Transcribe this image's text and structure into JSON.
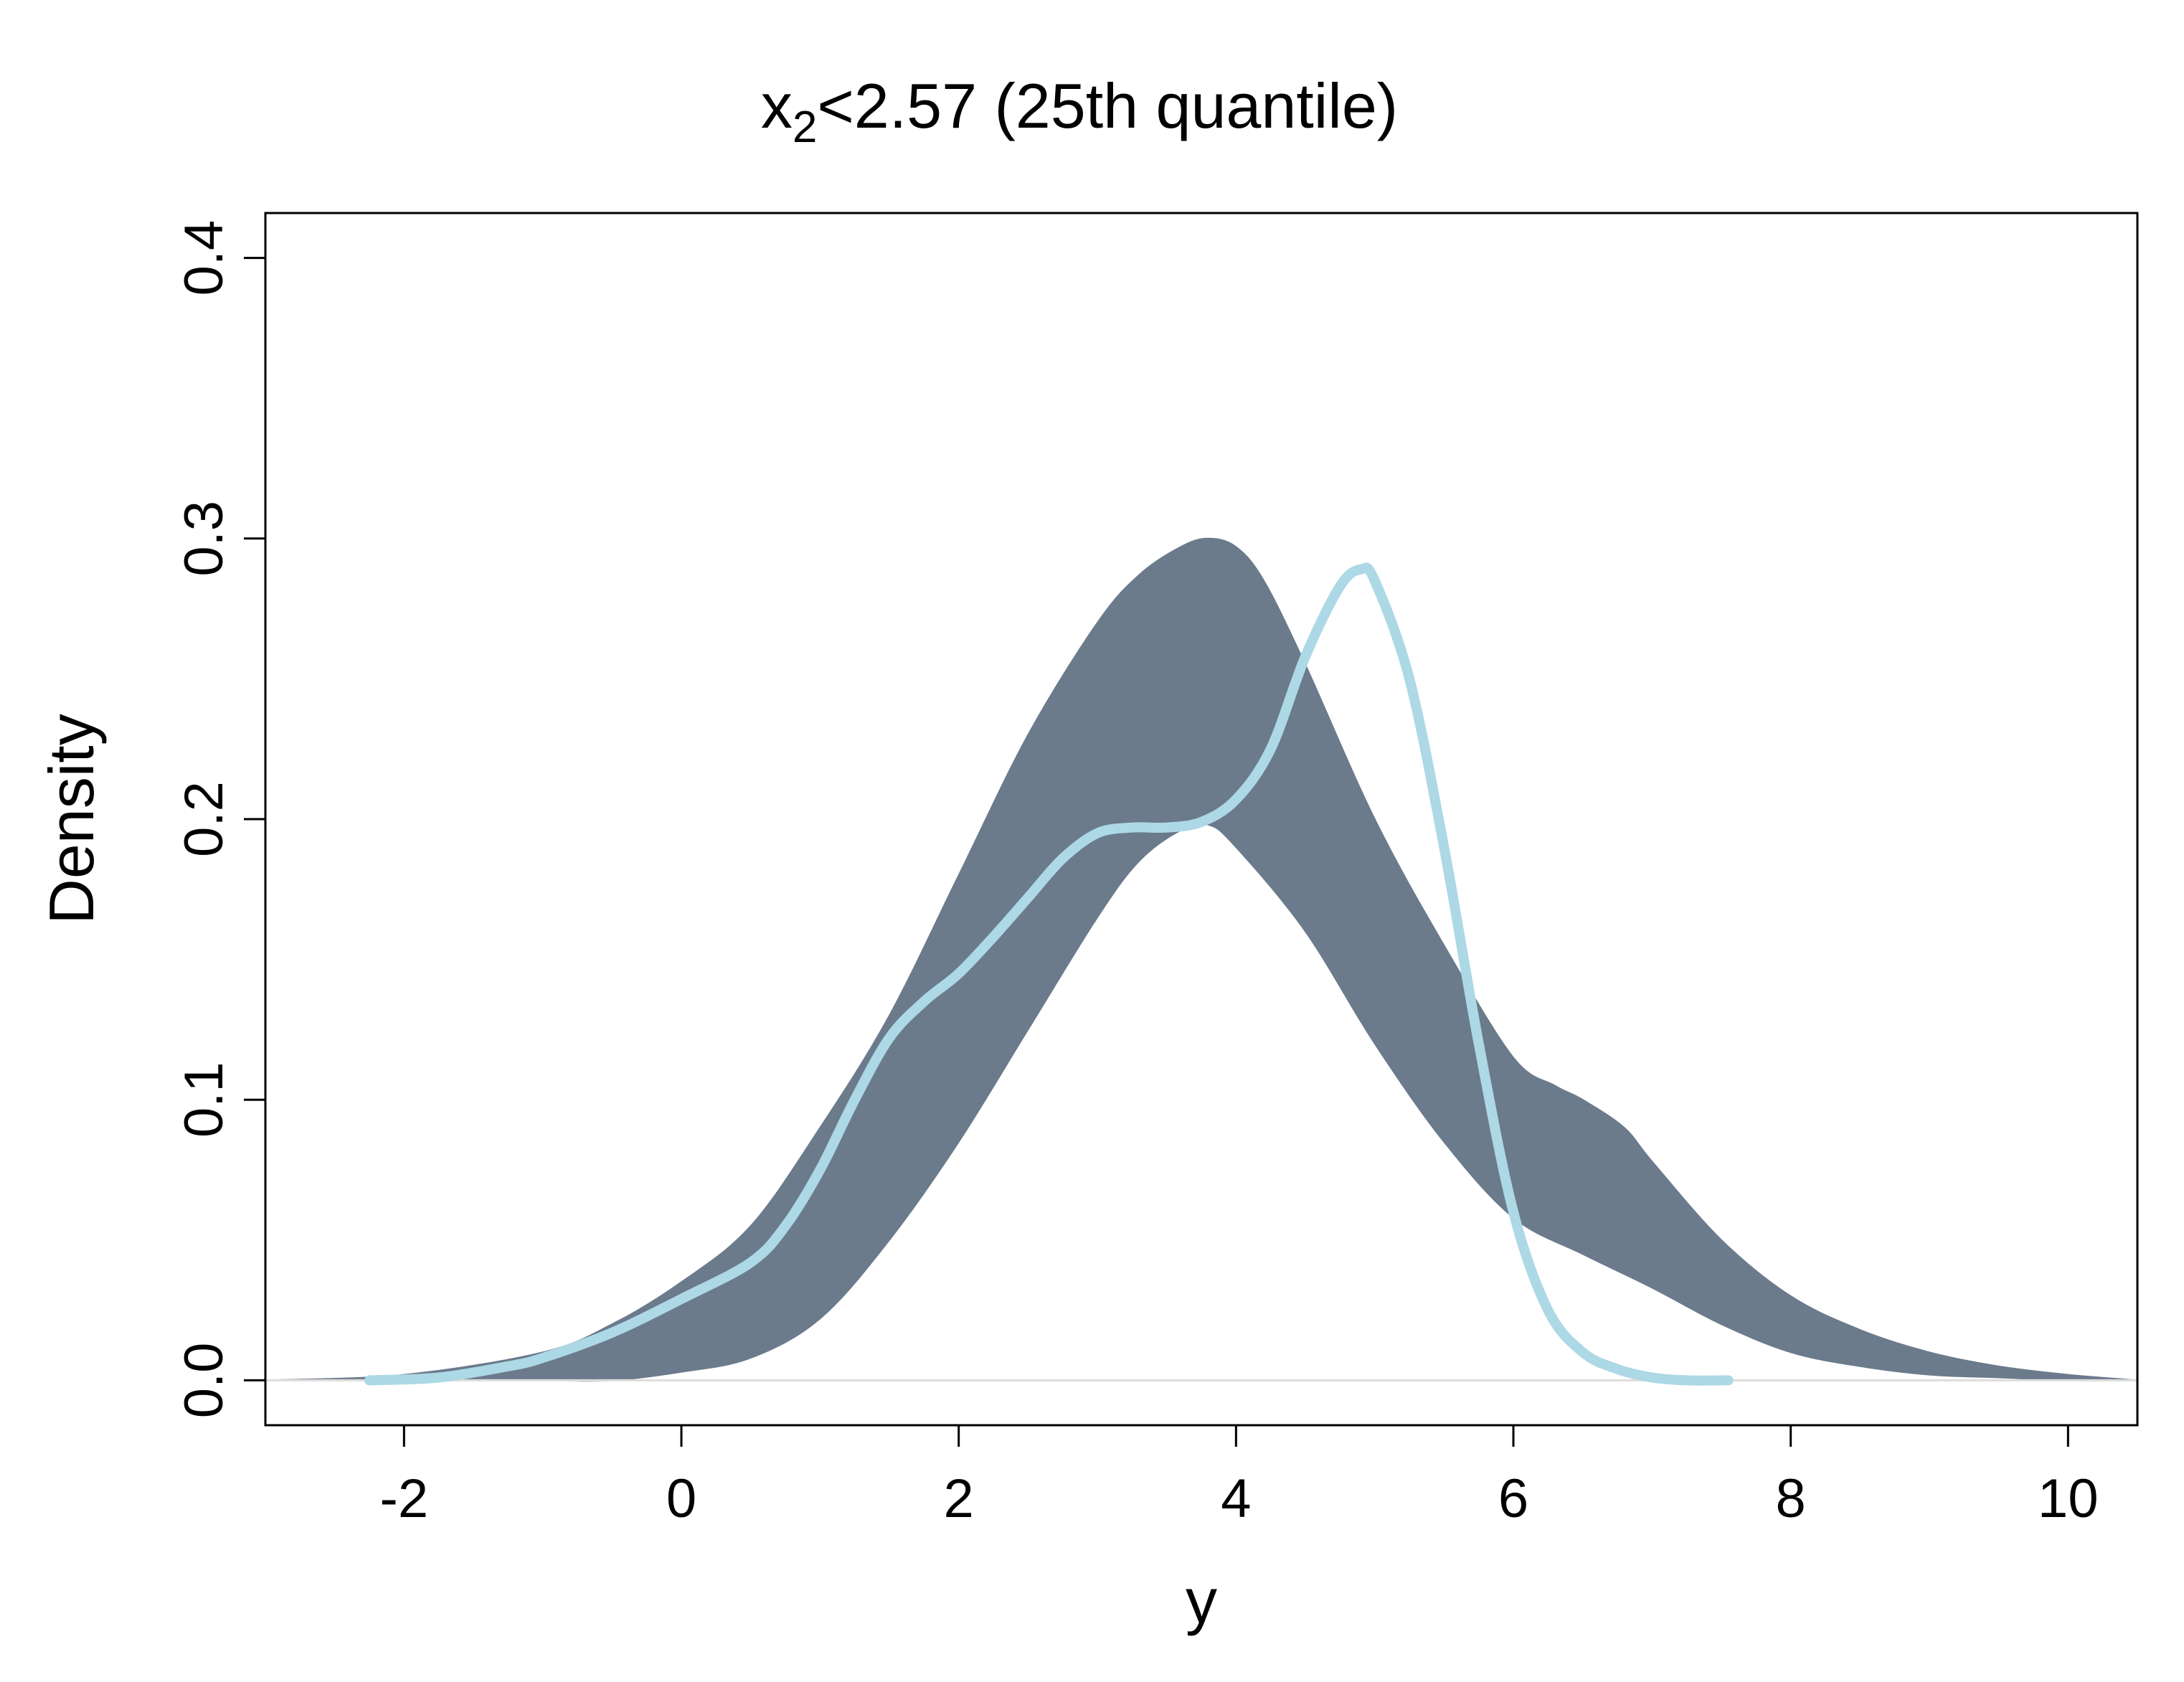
{
  "chart_data": {
    "type": "line",
    "title": {
      "base": "x",
      "subscript": "2",
      "rest": "<2.57 (25th quantile)"
    },
    "xlabel": "y",
    "ylabel": "Density",
    "xlim": [
      -3,
      10.5
    ],
    "ylim": [
      -0.016,
      0.416
    ],
    "x_ticks": [
      -2,
      0,
      2,
      4,
      6,
      8,
      10
    ],
    "y_ticks": [
      0.0,
      0.1,
      0.2,
      0.3,
      0.4
    ],
    "x_tick_labels": [
      "-2",
      "0",
      "2",
      "4",
      "6",
      "8",
      "10"
    ],
    "y_tick_labels": [
      "0.0",
      "0.1",
      "0.2",
      "0.3",
      "0.4"
    ],
    "grid": false,
    "legend": "none",
    "colors": {
      "envelope": "#6b7b8c",
      "observed": "#add8e6",
      "baseline": "#dddddd",
      "axis": "#000000"
    },
    "series": [
      {
        "role": "replicate-density-envelope-upper",
        "color": "#6b7b8c",
        "x": [
          -3.0,
          -2.0,
          -1.0,
          -0.5,
          0.0,
          0.5,
          1.0,
          1.5,
          2.0,
          2.5,
          3.0,
          3.3,
          3.6,
          3.8,
          4.0,
          4.2,
          4.5,
          5.0,
          5.5,
          6.0,
          6.3,
          6.5,
          6.8,
          7.0,
          7.5,
          8.0,
          8.5,
          9.0,
          9.5,
          10.0,
          10.5
        ],
        "y": [
          0.0,
          0.002,
          0.01,
          0.02,
          0.035,
          0.055,
          0.09,
          0.13,
          0.18,
          0.23,
          0.27,
          0.287,
          0.297,
          0.3,
          0.297,
          0.285,
          0.255,
          0.2,
          0.155,
          0.115,
          0.105,
          0.1,
          0.09,
          0.078,
          0.05,
          0.03,
          0.018,
          0.01,
          0.005,
          0.002,
          0.0
        ]
      },
      {
        "role": "replicate-density-envelope-lower",
        "color": "#6b7b8c",
        "x": [
          10.5,
          10.0,
          9.5,
          9.0,
          8.5,
          8.0,
          7.5,
          7.0,
          6.5,
          6.0,
          5.5,
          5.0,
          4.5,
          4.0,
          3.8,
          3.6,
          3.3,
          3.0,
          2.5,
          2.0,
          1.5,
          1.0,
          0.5,
          0.0,
          -0.5,
          -1.0,
          -2.0,
          -3.0
        ],
        "y": [
          0.0,
          0.0,
          0.001,
          0.002,
          0.005,
          0.01,
          0.02,
          0.033,
          0.045,
          0.058,
          0.085,
          0.12,
          0.16,
          0.19,
          0.198,
          0.196,
          0.185,
          0.165,
          0.125,
          0.085,
          0.05,
          0.022,
          0.008,
          0.003,
          0.0,
          0.0,
          0.0,
          0.0
        ]
      },
      {
        "role": "observed-density",
        "color": "#add8e6",
        "x": [
          -2.25,
          -1.75,
          -1.25,
          -1.0,
          -0.5,
          0.0,
          0.5,
          0.75,
          1.0,
          1.25,
          1.5,
          1.75,
          2.0,
          2.25,
          2.5,
          2.75,
          3.0,
          3.25,
          3.5,
          3.75,
          4.0,
          4.25,
          4.5,
          4.75,
          4.9,
          5.0,
          5.25,
          5.5,
          5.75,
          6.0,
          6.25,
          6.5,
          6.75,
          7.0,
          7.25,
          7.55
        ],
        "y": [
          0.0,
          0.001,
          0.005,
          0.008,
          0.017,
          0.029,
          0.042,
          0.055,
          0.075,
          0.1,
          0.122,
          0.135,
          0.145,
          0.158,
          0.172,
          0.186,
          0.195,
          0.197,
          0.197,
          0.199,
          0.207,
          0.225,
          0.258,
          0.283,
          0.289,
          0.285,
          0.25,
          0.19,
          0.12,
          0.06,
          0.025,
          0.01,
          0.004,
          0.001,
          0.0,
          0.0
        ]
      }
    ]
  }
}
